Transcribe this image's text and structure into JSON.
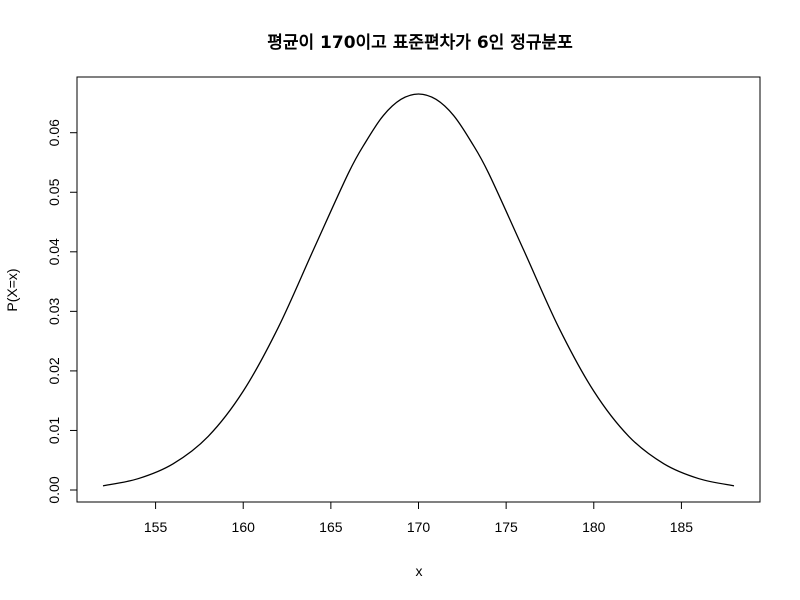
{
  "chart_data": {
    "type": "line",
    "title": "평균이 170이고 표준편차가 6인 정규분포",
    "xlabel": "x",
    "ylabel": "P(X=x)",
    "xlim": [
      152,
      188
    ],
    "ylim": [
      0,
      0.0665
    ],
    "x_ticks": [
      155,
      160,
      165,
      170,
      175,
      180,
      185
    ],
    "y_ticks": [
      0.0,
      0.01,
      0.02,
      0.03,
      0.04,
      0.05,
      0.06
    ],
    "x_tick_labels": [
      "155",
      "160",
      "165",
      "170",
      "175",
      "180",
      "185"
    ],
    "y_tick_labels": [
      "0.00",
      "0.01",
      "0.02",
      "0.03",
      "0.04",
      "0.05",
      "0.06"
    ],
    "grid": false,
    "line_color": "#000000",
    "series": [
      {
        "x": [
          152,
          154,
          156,
          158,
          160,
          162,
          164,
          166,
          167,
          168,
          169,
          170,
          171,
          172,
          173,
          174,
          176,
          178,
          180,
          182,
          184,
          186,
          188
        ],
        "values": [
          0.0007,
          0.0019,
          0.0044,
          0.009,
          0.0166,
          0.0273,
          0.0403,
          0.0532,
          0.0585,
          0.0629,
          0.0656,
          0.0665,
          0.0656,
          0.0629,
          0.0585,
          0.0532,
          0.0403,
          0.0273,
          0.0166,
          0.009,
          0.0044,
          0.0019,
          0.0007
        ]
      }
    ]
  }
}
